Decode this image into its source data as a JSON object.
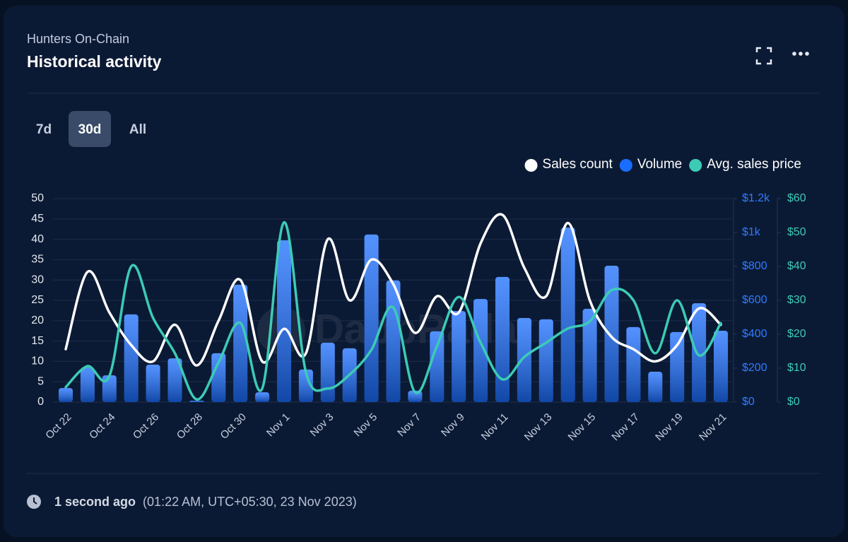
{
  "header": {
    "subtitle": "Hunters On-Chain",
    "title": "Historical activity"
  },
  "tabs": [
    "7d",
    "30d",
    "All"
  ],
  "active_tab": "30d",
  "watermark": "DappRadar",
  "footer": {
    "ago": "1 second ago",
    "time": "(01:22 AM, UTC+05:30, 23 Nov 2023)"
  },
  "chart_data": {
    "type": "bar-line",
    "categories": [
      "Oct 22",
      null,
      "Oct 24",
      null,
      "Oct 26",
      null,
      "Oct 28",
      null,
      "Oct 30",
      null,
      "Nov 1",
      null,
      "Nov 3",
      null,
      "Nov 5",
      null,
      "Nov 7",
      null,
      "Nov 9",
      null,
      "Nov 11",
      null,
      "Nov 13",
      null,
      "Nov 15",
      null,
      "Nov 17",
      null,
      "Nov 19",
      null,
      "Nov 21"
    ],
    "series": [
      {
        "name": "Sales count",
        "type": "line",
        "axis": "y",
        "color": "#ffffff",
        "values": [
          13,
          32,
          22,
          14,
          10,
          19,
          9,
          20,
          30,
          10,
          18,
          12,
          40,
          25,
          35,
          29,
          17,
          26,
          22,
          39,
          46,
          33,
          26,
          44,
          25,
          16,
          13,
          10,
          14,
          23,
          19
        ]
      },
      {
        "name": "Volume",
        "type": "bar",
        "axis": "y2",
        "color": "#1a6dff",
        "values": [
          83,
          204,
          158,
          517,
          221,
          258,
          8,
          288,
          692,
          58,
          954,
          192,
          350,
          317,
          988,
          717,
          67,
          417,
          537,
          608,
          738,
          496,
          488,
          1029,
          550,
          804,
          442,
          179,
          413,
          583,
          421
        ]
      },
      {
        "name": "Avg. sales price",
        "type": "line",
        "axis": "y3",
        "color": "#3ccbb5",
        "values": [
          4.4,
          10.6,
          7.7,
          40,
          24.8,
          14.4,
          0.8,
          11.7,
          23.3,
          4,
          53,
          8.8,
          4,
          8.1,
          15.4,
          27.9,
          2.9,
          16.5,
          31,
          17.5,
          6.7,
          13.3,
          17.5,
          21.7,
          23.8,
          33,
          30,
          14.4,
          30,
          13.8,
          23.3
        ]
      }
    ],
    "ylim": [
      0,
      50
    ],
    "yticks": [
      0,
      5,
      10,
      15,
      20,
      25,
      30,
      35,
      40,
      45,
      50
    ],
    "y2lim": [
      0,
      1200
    ],
    "y2ticks": [
      {
        "value": 0,
        "label": "$0"
      },
      {
        "value": 200,
        "label": "$200"
      },
      {
        "value": 400,
        "label": "$400"
      },
      {
        "value": 600,
        "label": "$600"
      },
      {
        "value": 800,
        "label": "$800"
      },
      {
        "value": 1000,
        "label": "$1k"
      },
      {
        "value": 1200,
        "label": "$1.2k"
      }
    ],
    "y3lim": [
      0,
      60
    ],
    "y3ticks": [
      {
        "value": 0,
        "label": "$0"
      },
      {
        "value": 10,
        "label": "$10"
      },
      {
        "value": 20,
        "label": "$20"
      },
      {
        "value": 30,
        "label": "$30"
      },
      {
        "value": 40,
        "label": "$40"
      },
      {
        "value": 50,
        "label": "$50"
      },
      {
        "value": 60,
        "label": "$60"
      }
    ],
    "grid": true,
    "legend": "top-right"
  }
}
